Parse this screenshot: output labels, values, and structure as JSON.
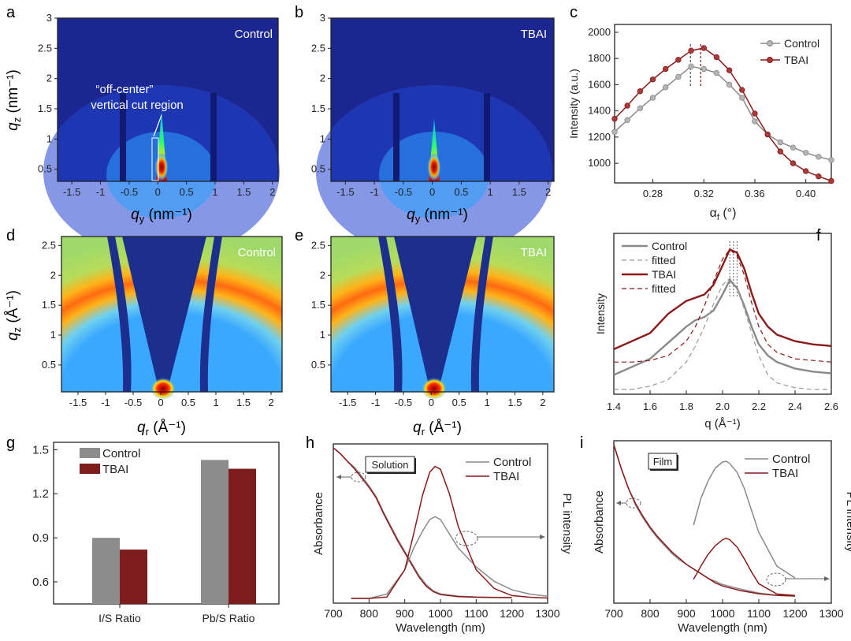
{
  "panels": {
    "a": {
      "letter": "a",
      "tag": "Control",
      "annot_line1": "“off-center”",
      "annot_line2": "vertical cut region",
      "ylabel": "q",
      "ylabel_sub": "z",
      "ylabel_unit": " (nm⁻¹)",
      "xlabel": "q",
      "xlabel_sub": "y",
      "xlabel_unit": " (nm⁻¹)"
    },
    "b": {
      "letter": "b",
      "tag": "TBAI",
      "xlabel": "q",
      "xlabel_sub": "y",
      "xlabel_unit": " (nm⁻¹)"
    },
    "d": {
      "letter": "d",
      "tag": "Control",
      "ylabel": "q",
      "ylabel_sub": "z",
      "ylabel_unit": " (Å⁻¹)",
      "xlabel": "q",
      "xlabel_sub": "r",
      "xlabel_unit": " (Å⁻¹)"
    },
    "e": {
      "letter": "e",
      "tag": "TBAI",
      "xlabel": "q",
      "xlabel_sub": "r",
      "xlabel_unit": " (Å⁻¹)"
    },
    "c": {
      "letter": "c"
    },
    "f": {
      "letter": "f"
    },
    "g": {
      "letter": "g"
    },
    "h": {
      "letter": "h",
      "box_label": "Solution"
    },
    "i": {
      "letter": "i",
      "box_label": "Film"
    }
  },
  "colors": {
    "control": "#8a8a8a",
    "tbai": "#8b1a1a",
    "tbai_fill": "#7d1c1c",
    "control_fill": "#8c8c8c",
    "map_bg": "#1a2a8c"
  },
  "chart_data": [
    {
      "id": "a",
      "type": "heatmap",
      "title": "Control",
      "x_ticks": [
        "-1.5",
        "-1",
        "-0.5",
        "0",
        "0.5",
        "1",
        "1.5",
        "2"
      ],
      "y_ticks": [
        "0.5",
        "1",
        "1.5",
        "2",
        "2.5",
        "3"
      ],
      "xlim": [
        -1.75,
        2.1
      ],
      "ylim": [
        0.3,
        3
      ]
    },
    {
      "id": "b",
      "type": "heatmap",
      "title": "TBAI",
      "x_ticks": [
        "-1.5",
        "-1",
        "-0.5",
        "0",
        "0.5",
        "1",
        "1.5",
        "2"
      ],
      "y_ticks": [
        "0.5",
        "1",
        "1.5",
        "2",
        "2.5",
        "3"
      ],
      "xlim": [
        -1.75,
        2.1
      ],
      "ylim": [
        0.3,
        3
      ]
    },
    {
      "id": "c",
      "type": "line",
      "xlabel": "α",
      "xlabel_sub": "f",
      "xlabel_unit": " (°)",
      "ylabel": "Intensity (a.u.)",
      "xlim": [
        0.25,
        0.42
      ],
      "ylim": [
        850,
        2060
      ],
      "x_ticks": [
        "0.28",
        "0.32",
        "0.36",
        "0.40"
      ],
      "x_tick_vals": [
        0.28,
        0.32,
        0.36,
        0.4
      ],
      "y_ticks": [
        "1000",
        "1200",
        "1400",
        "1600",
        "1800",
        "2000"
      ],
      "y_tick_vals": [
        1000,
        1200,
        1400,
        1600,
        1800,
        2000
      ],
      "peak_lines": [
        0.3095,
        0.3175
      ],
      "series": [
        {
          "name": "Control",
          "key": "control",
          "x": [
            0.25,
            0.26,
            0.27,
            0.28,
            0.29,
            0.3,
            0.31,
            0.32,
            0.33,
            0.34,
            0.35,
            0.36,
            0.37,
            0.38,
            0.39,
            0.4,
            0.41,
            0.42
          ],
          "y": [
            1240,
            1330,
            1420,
            1500,
            1580,
            1660,
            1740,
            1720,
            1690,
            1600,
            1500,
            1320,
            1220,
            1160,
            1120,
            1080,
            1050,
            1025
          ]
        },
        {
          "name": "TBAI",
          "key": "tbai",
          "x": [
            0.25,
            0.26,
            0.27,
            0.28,
            0.29,
            0.3,
            0.31,
            0.32,
            0.33,
            0.34,
            0.35,
            0.36,
            0.37,
            0.38,
            0.39,
            0.4,
            0.41,
            0.42
          ],
          "y": [
            1340,
            1440,
            1550,
            1640,
            1720,
            1790,
            1860,
            1880,
            1810,
            1710,
            1560,
            1380,
            1220,
            1090,
            1000,
            940,
            900,
            865
          ]
        }
      ]
    },
    {
      "id": "d",
      "type": "heatmap",
      "title": "Control",
      "x_ticks": [
        "-1.5",
        "-1",
        "-0.5",
        "0",
        "0.5",
        "1",
        "1.5",
        "2"
      ],
      "y_ticks": [
        "0.5",
        "1",
        "1.5",
        "2",
        "2.5"
      ],
      "xlim": [
        -1.8,
        2.2
      ],
      "ylim": [
        0.05,
        2.65
      ]
    },
    {
      "id": "e",
      "type": "heatmap",
      "title": "TBAI",
      "x_ticks": [
        "-1.5",
        "-1",
        "-0.5",
        "0",
        "0.5",
        "1",
        "1.5",
        "2"
      ],
      "y_ticks": [
        "0.5",
        "1",
        "1.5",
        "2",
        "2.5"
      ],
      "xlim": [
        -1.8,
        2.2
      ],
      "ylim": [
        0.05,
        2.65
      ]
    },
    {
      "id": "f",
      "type": "line",
      "xlabel": "q (Å⁻¹)",
      "ylabel": "Intensity",
      "xlim": [
        1.4,
        2.6
      ],
      "ylim": [
        0,
        1
      ],
      "x_ticks": [
        "1.4",
        "1.6",
        "1.8",
        "2.0",
        "2.2",
        "2.4",
        "2.6"
      ],
      "x_tick_vals": [
        1.4,
        1.6,
        1.8,
        2.0,
        2.2,
        2.4,
        2.6
      ],
      "peak_lines": [
        2.04,
        2.06,
        2.08
      ],
      "series": [
        {
          "name": "Control",
          "key": "control",
          "style": "solid",
          "x": [
            1.4,
            1.5,
            1.6,
            1.7,
            1.8,
            1.85,
            1.9,
            1.95,
            2.0,
            2.04,
            2.08,
            2.12,
            2.16,
            2.2,
            2.25,
            2.3,
            2.4,
            2.5,
            2.6
          ],
          "y": [
            0.12,
            0.17,
            0.22,
            0.32,
            0.42,
            0.46,
            0.48,
            0.52,
            0.62,
            0.71,
            0.66,
            0.55,
            0.42,
            0.31,
            0.24,
            0.2,
            0.16,
            0.14,
            0.13
          ]
        },
        {
          "name": "fitted",
          "key": "control",
          "style": "dashed",
          "x": [
            1.4,
            1.5,
            1.6,
            1.7,
            1.8,
            1.85,
            1.9,
            1.95,
            2.0,
            2.04,
            2.08,
            2.12,
            2.16,
            2.2,
            2.25,
            2.3,
            2.4,
            2.5,
            2.6
          ],
          "y": [
            0.03,
            0.03,
            0.05,
            0.09,
            0.2,
            0.3,
            0.42,
            0.56,
            0.68,
            0.72,
            0.66,
            0.53,
            0.38,
            0.24,
            0.12,
            0.07,
            0.04,
            0.03,
            0.03
          ]
        },
        {
          "name": "TBAI",
          "key": "tbai",
          "style": "solid",
          "x": [
            1.4,
            1.5,
            1.6,
            1.7,
            1.8,
            1.85,
            1.9,
            1.95,
            2.0,
            2.04,
            2.08,
            2.12,
            2.16,
            2.2,
            2.25,
            2.3,
            2.4,
            2.5,
            2.6
          ],
          "y": [
            0.28,
            0.33,
            0.38,
            0.5,
            0.58,
            0.6,
            0.62,
            0.68,
            0.8,
            0.9,
            0.88,
            0.78,
            0.63,
            0.5,
            0.42,
            0.37,
            0.33,
            0.31,
            0.3
          ]
        },
        {
          "name": "fitted",
          "key": "tbai",
          "style": "dashed",
          "x": [
            1.4,
            1.5,
            1.6,
            1.7,
            1.8,
            1.85,
            1.9,
            1.95,
            2.0,
            2.04,
            2.08,
            2.12,
            2.16,
            2.2,
            2.25,
            2.3,
            2.4,
            2.5,
            2.6
          ],
          "y": [
            0.2,
            0.2,
            0.21,
            0.24,
            0.33,
            0.42,
            0.55,
            0.7,
            0.84,
            0.9,
            0.86,
            0.74,
            0.57,
            0.42,
            0.31,
            0.26,
            0.22,
            0.21,
            0.2
          ]
        }
      ]
    },
    {
      "id": "g",
      "type": "bar",
      "categories": [
        "I/S Ratio",
        "Pb/S Ratio"
      ],
      "ylim": [
        0.45,
        1.55
      ],
      "y_ticks": [
        "0.6",
        "0.9",
        "1.2",
        "1.5"
      ],
      "y_tick_vals": [
        0.6,
        0.9,
        1.2,
        1.5
      ],
      "series": [
        {
          "name": "Control",
          "key": "control",
          "values": [
            0.9,
            1.43
          ]
        },
        {
          "name": "TBAI",
          "key": "tbai",
          "values": [
            0.82,
            1.37
          ]
        }
      ]
    },
    {
      "id": "h",
      "type": "line",
      "xlabel": "Wavelength (nm)",
      "ylabel_left": "Absorbance",
      "ylabel_right": "PL intensity",
      "xlim": [
        700,
        1300
      ],
      "x_ticks": [
        "700",
        "800",
        "900",
        "1000",
        "1100",
        "1200",
        "1300"
      ],
      "x_tick_vals": [
        700,
        800,
        900,
        1000,
        1100,
        1200,
        1300
      ],
      "series": [
        {
          "name": "Control",
          "key": "control",
          "kind": "absorbance",
          "x": [
            700,
            720,
            740,
            760,
            780,
            800,
            820,
            840,
            860,
            880,
            900,
            920,
            940,
            960,
            980,
            1000,
            1050,
            1100,
            1150,
            1200
          ],
          "y": [
            0.99,
            0.95,
            0.9,
            0.86,
            0.8,
            0.74,
            0.67,
            0.57,
            0.48,
            0.39,
            0.31,
            0.23,
            0.15,
            0.09,
            0.05,
            0.03,
            0.015,
            0.01,
            0.007,
            0.006
          ]
        },
        {
          "name": "TBAI",
          "key": "tbai",
          "kind": "absorbance",
          "x": [
            700,
            720,
            740,
            760,
            780,
            800,
            820,
            840,
            860,
            880,
            900,
            920,
            940,
            960,
            980,
            1000,
            1050,
            1100,
            1150,
            1200
          ],
          "y": [
            0.99,
            0.95,
            0.9,
            0.85,
            0.79,
            0.73,
            0.66,
            0.56,
            0.47,
            0.38,
            0.3,
            0.22,
            0.14,
            0.08,
            0.045,
            0.025,
            0.012,
            0.008,
            0.006,
            0.005
          ]
        },
        {
          "name": "Control",
          "key": "control",
          "kind": "pl",
          "x": [
            750,
            800,
            850,
            900,
            925,
            950,
            970,
            985,
            1000,
            1025,
            1050,
            1100,
            1150,
            1200,
            1250,
            1300
          ],
          "y": [
            0.0,
            0.0,
            0.03,
            0.2,
            0.35,
            0.47,
            0.55,
            0.57,
            0.55,
            0.45,
            0.35,
            0.22,
            0.12,
            0.06,
            0.03,
            0.015
          ]
        },
        {
          "name": "TBAI",
          "key": "tbai",
          "kind": "pl",
          "x": [
            750,
            800,
            850,
            900,
            925,
            950,
            970,
            985,
            1000,
            1025,
            1050,
            1100,
            1150,
            1200,
            1250,
            1300
          ],
          "y": [
            0.0,
            0.0,
            0.01,
            0.2,
            0.45,
            0.72,
            0.88,
            0.92,
            0.9,
            0.73,
            0.5,
            0.2,
            0.07,
            0.02,
            0.008,
            0.003
          ]
        }
      ]
    },
    {
      "id": "i",
      "type": "line",
      "xlabel": "Wavelength (nm)",
      "ylabel_left": "Absorbance",
      "ylabel_right": "PL intensity",
      "xlim": [
        700,
        1300
      ],
      "x_ticks": [
        "700",
        "800",
        "900",
        "1000",
        "1100",
        "1200",
        "1300"
      ],
      "x_tick_vals": [
        700,
        800,
        900,
        1000,
        1100,
        1200,
        1300
      ],
      "series": [
        {
          "name": "Control",
          "key": "control",
          "kind": "absorbance",
          "x": [
            700,
            720,
            740,
            760,
            780,
            800,
            820,
            840,
            860,
            880,
            900,
            920,
            940,
            960,
            980,
            1000,
            1050,
            1100,
            1150,
            1200
          ],
          "y": [
            0.99,
            0.84,
            0.71,
            0.6,
            0.52,
            0.45,
            0.39,
            0.34,
            0.29,
            0.25,
            0.22,
            0.19,
            0.16,
            0.13,
            0.11,
            0.09,
            0.06,
            0.035,
            0.02,
            0.015
          ]
        },
        {
          "name": "TBAI",
          "key": "tbai",
          "kind": "absorbance",
          "x": [
            700,
            720,
            740,
            760,
            780,
            800,
            820,
            840,
            860,
            880,
            900,
            920,
            940,
            960,
            980,
            1000,
            1050,
            1100,
            1150,
            1200
          ],
          "y": [
            0.99,
            0.84,
            0.71,
            0.61,
            0.53,
            0.46,
            0.4,
            0.35,
            0.3,
            0.26,
            0.22,
            0.19,
            0.16,
            0.13,
            0.1,
            0.08,
            0.05,
            0.03,
            0.02,
            0.015
          ]
        },
        {
          "name": "Control",
          "key": "control",
          "kind": "pl",
          "x": [
            920,
            940,
            960,
            980,
            1000,
            1010,
            1020,
            1040,
            1060,
            1080,
            1100,
            1150,
            1200
          ],
          "y": [
            0.5,
            0.68,
            0.8,
            0.89,
            0.93,
            0.935,
            0.92,
            0.86,
            0.75,
            0.6,
            0.45,
            0.22,
            0.14
          ]
        },
        {
          "name": "TBAI",
          "key": "tbai",
          "kind": "pl",
          "x": [
            920,
            940,
            960,
            980,
            1000,
            1010,
            1020,
            1040,
            1060,
            1080,
            1100,
            1150,
            1200
          ],
          "y": [
            0.13,
            0.22,
            0.3,
            0.36,
            0.4,
            0.41,
            0.4,
            0.35,
            0.27,
            0.18,
            0.1,
            0.03,
            0.02
          ]
        }
      ]
    }
  ]
}
